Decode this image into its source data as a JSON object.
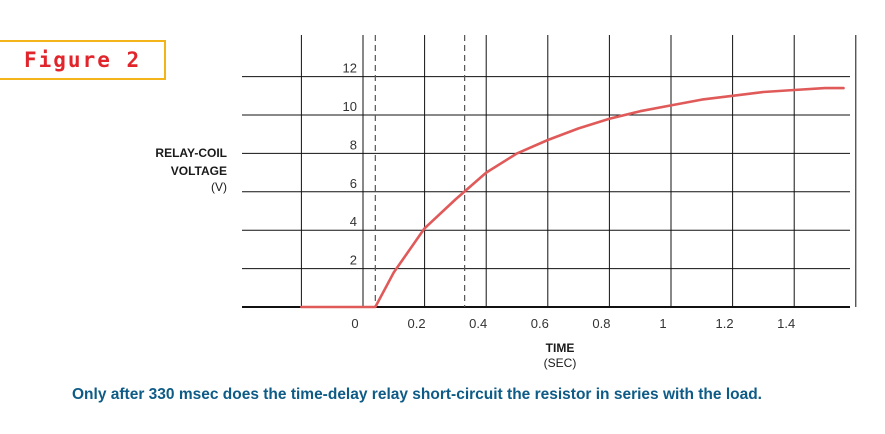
{
  "figure_label": "Figure 2",
  "caption": "Only after 330 msec does the time-delay relay short-circuit the resistor in series with the load.",
  "colors": {
    "curve": "#e05a5a",
    "grid": "#111111",
    "label_border": "#f2b418",
    "label_text": "#e0262c",
    "caption": "#0d5b86"
  },
  "chart_data": {
    "type": "line",
    "ylabel": [
      "RELAY-COIL",
      "VOLTAGE",
      "(V)"
    ],
    "xlabel": [
      "TIME",
      "(SEC)"
    ],
    "x_ticks": [
      "0",
      "0.2",
      "0.4",
      "0.6",
      "0.8",
      "1",
      "1.2",
      "1.4"
    ],
    "y_ticks": [
      "2",
      "4",
      "6",
      "8",
      "10",
      "12"
    ],
    "xlim": [
      -0.2,
      1.6
    ],
    "ylim": [
      0,
      14
    ],
    "grid": true,
    "vertical_markers": [
      0.04,
      0.33
    ],
    "series": [
      {
        "x": [
          -0.2,
          0.04,
          0.1,
          0.2,
          0.3,
          0.4,
          0.5,
          0.6,
          0.7,
          0.8,
          0.9,
          1.0,
          1.1,
          1.2,
          1.3,
          1.4,
          1.5,
          1.56
        ],
        "y": [
          0,
          0,
          1.8,
          4.1,
          5.6,
          7.0,
          8.0,
          8.7,
          9.3,
          9.8,
          10.2,
          10.5,
          10.8,
          11.0,
          11.2,
          11.3,
          11.4,
          11.4
        ]
      }
    ]
  }
}
